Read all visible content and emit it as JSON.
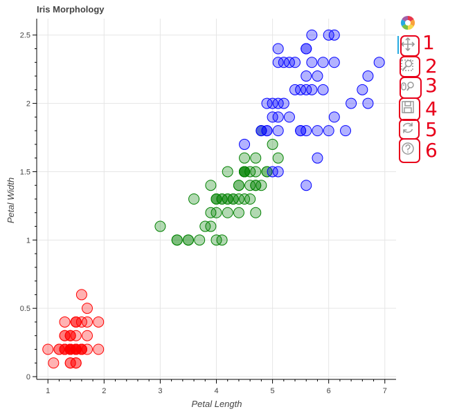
{
  "chart_data": {
    "type": "scatter",
    "title": "Iris Morphology",
    "xlabel": "Petal Length",
    "ylabel": "Petal Width",
    "xlim": [
      0.8,
      7.2
    ],
    "ylim": [
      -0.02,
      2.62
    ],
    "xticks": [
      1,
      2,
      3,
      4,
      5,
      6,
      7
    ],
    "yticks": [
      0,
      0.5,
      1,
      1.5,
      2,
      2.5
    ],
    "ytick_labels": [
      "0",
      "0.5",
      "1",
      "1.5",
      "2",
      "2.5"
    ],
    "grid": true,
    "series": [
      {
        "color": "#ff0000",
        "points": [
          [
            1.4,
            0.2
          ],
          [
            1.4,
            0.2
          ],
          [
            1.3,
            0.2
          ],
          [
            1.5,
            0.2
          ],
          [
            1.4,
            0.2
          ],
          [
            1.7,
            0.4
          ],
          [
            1.4,
            0.3
          ],
          [
            1.5,
            0.2
          ],
          [
            1.4,
            0.2
          ],
          [
            1.5,
            0.1
          ],
          [
            1.5,
            0.2
          ],
          [
            1.6,
            0.2
          ],
          [
            1.4,
            0.1
          ],
          [
            1.1,
            0.1
          ],
          [
            1.2,
            0.2
          ],
          [
            1.5,
            0.4
          ],
          [
            1.3,
            0.4
          ],
          [
            1.4,
            0.3
          ],
          [
            1.7,
            0.3
          ],
          [
            1.5,
            0.3
          ],
          [
            1.7,
            0.2
          ],
          [
            1.5,
            0.4
          ],
          [
            1.0,
            0.2
          ],
          [
            1.7,
            0.5
          ],
          [
            1.9,
            0.2
          ],
          [
            1.6,
            0.2
          ],
          [
            1.6,
            0.4
          ],
          [
            1.5,
            0.2
          ],
          [
            1.4,
            0.2
          ],
          [
            1.6,
            0.2
          ],
          [
            1.6,
            0.2
          ],
          [
            1.5,
            0.4
          ],
          [
            1.5,
            0.1
          ],
          [
            1.4,
            0.2
          ],
          [
            1.5,
            0.2
          ],
          [
            1.2,
            0.2
          ],
          [
            1.3,
            0.2
          ],
          [
            1.4,
            0.1
          ],
          [
            1.3,
            0.2
          ],
          [
            1.5,
            0.2
          ],
          [
            1.3,
            0.3
          ],
          [
            1.3,
            0.3
          ],
          [
            1.3,
            0.2
          ],
          [
            1.6,
            0.6
          ],
          [
            1.9,
            0.4
          ],
          [
            1.4,
            0.3
          ],
          [
            1.6,
            0.2
          ],
          [
            1.4,
            0.2
          ],
          [
            1.5,
            0.2
          ],
          [
            1.4,
            0.2
          ]
        ]
      },
      {
        "color": "#008000",
        "points": [
          [
            4.7,
            1.4
          ],
          [
            4.5,
            1.5
          ],
          [
            4.9,
            1.5
          ],
          [
            4.0,
            1.3
          ],
          [
            4.6,
            1.5
          ],
          [
            4.5,
            1.3
          ],
          [
            4.7,
            1.6
          ],
          [
            3.3,
            1.0
          ],
          [
            4.6,
            1.3
          ],
          [
            3.9,
            1.4
          ],
          [
            3.5,
            1.0
          ],
          [
            4.2,
            1.5
          ],
          [
            4.0,
            1.0
          ],
          [
            4.7,
            1.4
          ],
          [
            3.6,
            1.3
          ],
          [
            4.4,
            1.4
          ],
          [
            4.5,
            1.5
          ],
          [
            4.1,
            1.0
          ],
          [
            4.5,
            1.5
          ],
          [
            3.9,
            1.1
          ],
          [
            4.8,
            1.8
          ],
          [
            4.0,
            1.3
          ],
          [
            4.9,
            1.5
          ],
          [
            4.7,
            1.2
          ],
          [
            4.3,
            1.3
          ],
          [
            4.4,
            1.4
          ],
          [
            4.8,
            1.4
          ],
          [
            5.0,
            1.7
          ],
          [
            4.5,
            1.5
          ],
          [
            3.5,
            1.0
          ],
          [
            3.8,
            1.1
          ],
          [
            3.7,
            1.0
          ],
          [
            3.9,
            1.2
          ],
          [
            5.1,
            1.6
          ],
          [
            4.5,
            1.5
          ],
          [
            4.5,
            1.6
          ],
          [
            4.7,
            1.5
          ],
          [
            4.4,
            1.3
          ],
          [
            4.1,
            1.3
          ],
          [
            4.0,
            1.3
          ],
          [
            4.4,
            1.2
          ],
          [
            4.6,
            1.4
          ],
          [
            4.0,
            1.2
          ],
          [
            3.3,
            1.0
          ],
          [
            4.2,
            1.3
          ],
          [
            4.2,
            1.2
          ],
          [
            4.2,
            1.3
          ],
          [
            4.3,
            1.3
          ],
          [
            3.0,
            1.1
          ],
          [
            4.1,
            1.3
          ]
        ]
      },
      {
        "color": "#0000ff",
        "points": [
          [
            6.0,
            2.5
          ],
          [
            5.1,
            1.9
          ],
          [
            5.9,
            2.1
          ],
          [
            5.6,
            1.8
          ],
          [
            5.8,
            2.2
          ],
          [
            6.6,
            2.1
          ],
          [
            4.5,
            1.7
          ],
          [
            6.3,
            1.8
          ],
          [
            5.8,
            1.8
          ],
          [
            6.1,
            2.5
          ],
          [
            5.1,
            2.0
          ],
          [
            5.3,
            1.9
          ],
          [
            5.5,
            2.1
          ],
          [
            5.0,
            2.0
          ],
          [
            5.1,
            2.4
          ],
          [
            5.3,
            2.3
          ],
          [
            5.5,
            1.8
          ],
          [
            6.7,
            2.2
          ],
          [
            6.9,
            2.3
          ],
          [
            5.0,
            1.5
          ],
          [
            5.7,
            2.3
          ],
          [
            4.9,
            2.0
          ],
          [
            6.7,
            2.0
          ],
          [
            4.9,
            1.8
          ],
          [
            5.7,
            2.1
          ],
          [
            6.0,
            1.8
          ],
          [
            4.8,
            1.8
          ],
          [
            4.9,
            1.8
          ],
          [
            5.6,
            2.1
          ],
          [
            5.8,
            1.6
          ],
          [
            6.1,
            1.9
          ],
          [
            6.4,
            2.0
          ],
          [
            5.6,
            2.2
          ],
          [
            5.1,
            1.5
          ],
          [
            5.6,
            1.4
          ],
          [
            6.1,
            2.3
          ],
          [
            5.6,
            2.4
          ],
          [
            5.5,
            1.8
          ],
          [
            4.8,
            1.8
          ],
          [
            5.4,
            2.1
          ],
          [
            5.6,
            2.4
          ],
          [
            5.1,
            2.3
          ],
          [
            5.9,
            2.3
          ],
          [
            5.7,
            2.5
          ],
          [
            5.2,
            2.3
          ],
          [
            5.0,
            1.9
          ],
          [
            5.2,
            2.0
          ],
          [
            5.4,
            2.3
          ],
          [
            5.1,
            1.8
          ]
        ]
      }
    ]
  },
  "toolbar": {
    "logo_icon": "bokeh-logo-icon",
    "tools": [
      {
        "icon": "pan-icon",
        "number": "1"
      },
      {
        "icon": "box-zoom-icon",
        "number": "2"
      },
      {
        "icon": "wheel-zoom-icon",
        "number": "3"
      },
      {
        "icon": "save-icon",
        "number": "4"
      },
      {
        "icon": "reset-icon",
        "number": "5"
      },
      {
        "icon": "help-icon",
        "number": "6"
      }
    ],
    "annotation_color": "#e8001a"
  }
}
